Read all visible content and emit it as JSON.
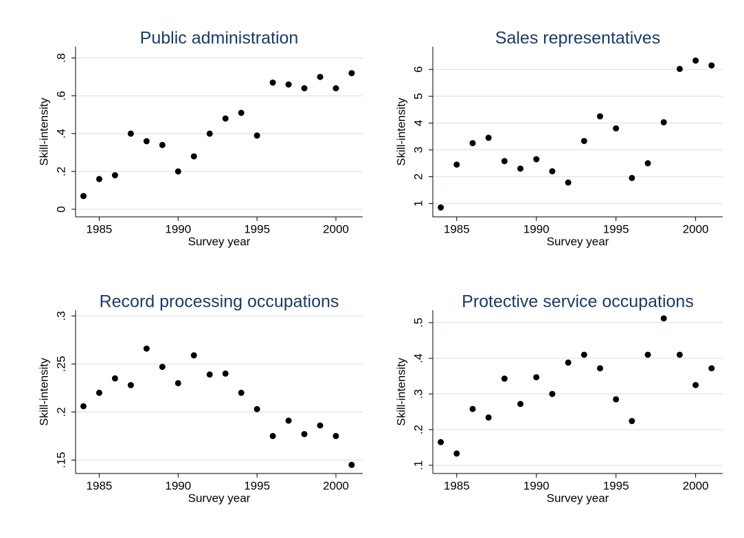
{
  "chart_data": [
    {
      "type": "scatter",
      "title": "Public administration",
      "xlabel": "Survey year",
      "ylabel": "Skill-intensity",
      "color": "#000000",
      "grid": true,
      "x": [
        1984,
        1985,
        1986,
        1987,
        1988,
        1989,
        1990,
        1991,
        1992,
        1993,
        1994,
        1995,
        1996,
        1997,
        1998,
        1999,
        2000,
        2001
      ],
      "values": [
        0.07,
        0.16,
        0.18,
        0.4,
        0.36,
        0.34,
        0.2,
        0.28,
        0.4,
        0.48,
        0.51,
        0.39,
        0.67,
        0.66,
        0.64,
        0.7,
        0.64,
        0.72
      ],
      "xlim": [
        1983.5,
        2001.7
      ],
      "xticks": [
        1985,
        1990,
        1995,
        2000
      ],
      "ylim": [
        -0.04,
        0.86
      ],
      "yticks": [
        0,
        {
          "value": 0.2,
          "label": ".2"
        },
        {
          "value": 0.4,
          "label": ".4"
        },
        {
          "value": 0.6,
          "label": ".6"
        },
        {
          "value": 0.8,
          "label": ".8"
        }
      ]
    },
    {
      "type": "scatter",
      "title": "Sales representatives",
      "xlabel": "Survey year",
      "ylabel": "Skill-intensity",
      "color": "#000000",
      "grid": true,
      "x": [
        1984,
        1985,
        1986,
        1987,
        1988,
        1989,
        1990,
        1991,
        1992,
        1993,
        1994,
        1995,
        1996,
        1997,
        1998,
        1999,
        2000,
        2001
      ],
      "values": [
        0.85,
        2.45,
        3.25,
        3.45,
        2.58,
        2.3,
        2.65,
        2.2,
        1.78,
        3.33,
        4.25,
        3.8,
        1.95,
        2.5,
        4.03,
        6.02,
        6.33,
        6.15
      ],
      "xlim": [
        1983.5,
        2001.7
      ],
      "xticks": [
        1985,
        1990,
        1995,
        2000
      ],
      "ylim": [
        0.5,
        6.85
      ],
      "yticks": [
        1,
        2,
        3,
        4,
        5,
        6
      ]
    },
    {
      "type": "scatter",
      "title": "Record processing occupations",
      "xlabel": "Survey year",
      "ylabel": "Skill-intensity",
      "color": "#000000",
      "grid": true,
      "x": [
        1984,
        1985,
        1986,
        1987,
        1988,
        1989,
        1990,
        1991,
        1992,
        1993,
        1994,
        1995,
        1996,
        1997,
        1998,
        1999,
        2000,
        2001
      ],
      "values": [
        0.206,
        0.22,
        0.235,
        0.228,
        0.266,
        0.247,
        0.23,
        0.259,
        0.239,
        0.24,
        0.22,
        0.203,
        0.175,
        0.191,
        0.177,
        0.186,
        0.175,
        0.145
      ],
      "xlim": [
        1983.5,
        2001.7
      ],
      "xticks": [
        1985,
        1990,
        1995,
        2000
      ],
      "ylim": [
        0.136,
        0.306
      ],
      "yticks": [
        {
          "value": 0.15,
          "label": ".15"
        },
        {
          "value": 0.2,
          "label": ".2"
        },
        {
          "value": 0.25,
          "label": ".25"
        },
        {
          "value": 0.3,
          "label": ".3"
        }
      ]
    },
    {
      "type": "scatter",
      "title": "Protective service occupations",
      "xlabel": "Survey year",
      "ylabel": "Skill-intensity",
      "color": "#000000",
      "grid": true,
      "x": [
        1984,
        1985,
        1986,
        1987,
        1988,
        1989,
        1990,
        1991,
        1992,
        1993,
        1994,
        1995,
        1996,
        1997,
        1998,
        1999,
        2000,
        2001
      ],
      "values": [
        0.165,
        0.133,
        0.258,
        0.234,
        0.343,
        0.272,
        0.347,
        0.3,
        0.388,
        0.41,
        0.372,
        0.285,
        0.224,
        0.41,
        0.512,
        0.41,
        0.325,
        0.372
      ],
      "xlim": [
        1983.5,
        2001.7
      ],
      "xticks": [
        1985,
        1990,
        1995,
        2000
      ],
      "ylim": [
        0.077,
        0.535
      ],
      "yticks": [
        {
          "value": 0.1,
          "label": ".1"
        },
        {
          "value": 0.2,
          "label": ".2"
        },
        {
          "value": 0.3,
          "label": ".3"
        },
        {
          "value": 0.4,
          "label": ".4"
        },
        {
          "value": 0.5,
          "label": ".5"
        }
      ]
    }
  ]
}
